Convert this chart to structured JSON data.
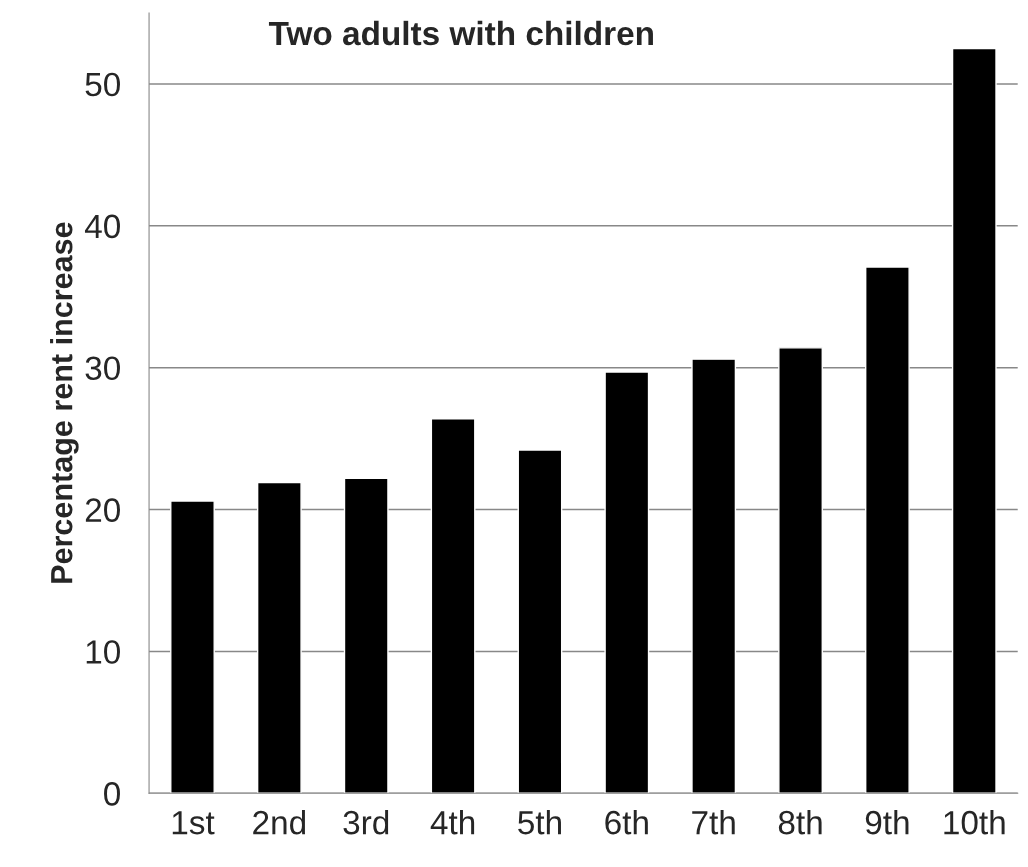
{
  "chart_data": {
    "type": "bar",
    "title": "Two adults with children",
    "ylabel": "Percentage rent increase",
    "categories": [
      "1st",
      "2nd",
      "3rd",
      "4th",
      "5th",
      "6th",
      "7th",
      "8th",
      "9th",
      "10th"
    ],
    "values": [
      20.6,
      21.9,
      22.2,
      26.4,
      24.2,
      29.7,
      30.6,
      31.4,
      37.1,
      52.5
    ],
    "color": "#000000",
    "ylim": [
      0,
      55
    ],
    "yticks": [
      0,
      10,
      20,
      30,
      40,
      50
    ],
    "grid": "y"
  }
}
